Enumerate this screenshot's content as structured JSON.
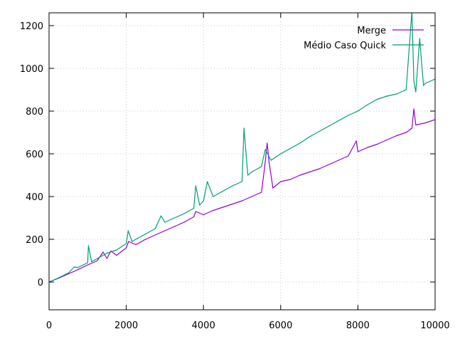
{
  "chart_data": {
    "type": "line",
    "title": "",
    "xlabel": "",
    "ylabel": "",
    "xlim": [
      0,
      10000
    ],
    "ylim": [
      -130,
      1260
    ],
    "xticks": [
      0,
      2000,
      4000,
      6000,
      8000,
      10000
    ],
    "yticks": [
      0,
      200,
      400,
      600,
      800,
      1000,
      1200
    ],
    "grid": true,
    "legend_position": "top-right",
    "series": [
      {
        "name": "Merge",
        "color": "#9400d3",
        "x": [
          0,
          250,
          500,
          750,
          1000,
          1250,
          1400,
          1500,
          1600,
          1750,
          2000,
          2060,
          2250,
          2500,
          2750,
          3000,
          3250,
          3500,
          3750,
          3800,
          4000,
          4250,
          4500,
          4750,
          5000,
          5250,
          5500,
          5580,
          5650,
          5700,
          5800,
          6000,
          6250,
          6500,
          6750,
          7000,
          7250,
          7500,
          7750,
          7960,
          8000,
          8250,
          8500,
          8750,
          9000,
          9250,
          9400,
          9450,
          9500,
          9750,
          10000
        ],
        "values": [
          0,
          18,
          38,
          58,
          80,
          100,
          140,
          110,
          145,
          125,
          160,
          190,
          175,
          200,
          220,
          240,
          260,
          280,
          305,
          330,
          315,
          335,
          350,
          365,
          380,
          400,
          420,
          530,
          650,
          560,
          440,
          470,
          480,
          500,
          515,
          530,
          550,
          570,
          590,
          660,
          610,
          630,
          645,
          665,
          685,
          700,
          720,
          810,
          735,
          745,
          760
        ]
      },
      {
        "name": "Médio Caso Quick",
        "color": "#009e73",
        "x": [
          0,
          250,
          500,
          650,
          750,
          1000,
          1020,
          1100,
          1250,
          1500,
          1750,
          2000,
          2050,
          2150,
          2500,
          2750,
          2900,
          3000,
          3250,
          3500,
          3750,
          3800,
          3900,
          4000,
          4100,
          4250,
          4500,
          4750,
          5000,
          5050,
          5150,
          5250,
          5500,
          5600,
          5750,
          6000,
          6250,
          6500,
          6750,
          7000,
          7250,
          7500,
          7750,
          8000,
          8250,
          8500,
          8750,
          9000,
          9250,
          9400,
          9450,
          9500,
          9600,
          9700,
          9750,
          10000
        ],
        "values": [
          0,
          20,
          42,
          70,
          68,
          90,
          170,
          95,
          110,
          135,
          150,
          180,
          240,
          190,
          225,
          250,
          310,
          280,
          300,
          320,
          345,
          450,
          360,
          380,
          470,
          400,
          425,
          450,
          470,
          720,
          500,
          515,
          540,
          620,
          570,
          600,
          625,
          650,
          680,
          705,
          730,
          755,
          780,
          800,
          830,
          855,
          870,
          880,
          900,
          1270,
          940,
          890,
          1140,
          920,
          930,
          950
        ]
      }
    ]
  }
}
